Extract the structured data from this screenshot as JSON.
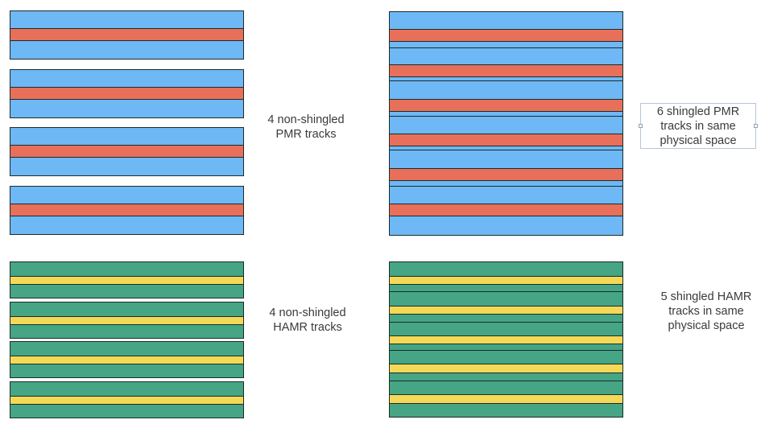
{
  "colors": {
    "pmr_fill": "#6db8f5",
    "pmr_write_band": "#e8705a",
    "hamr_fill": "#45a584",
    "hamr_write_band": "#f4d957",
    "outline": "#1c2b2a"
  },
  "labels": {
    "pmr_non_shingled": "4 non-shingled\nPMR tracks",
    "pmr_shingled": "6 shingled PMR\ntracks in same\nphysical space",
    "hamr_non_shingled": "4 non-shingled\nHAMR tracks",
    "hamr_shingled": "5 shingled HAMR\ntracks in same\nphysical space"
  },
  "groups": {
    "pmr_non_shingled": {
      "track_count": 4
    },
    "pmr_shingled": {
      "track_count": 6
    },
    "hamr_non_shingled": {
      "track_count": 4
    },
    "hamr_shingled": {
      "track_count": 5
    }
  }
}
